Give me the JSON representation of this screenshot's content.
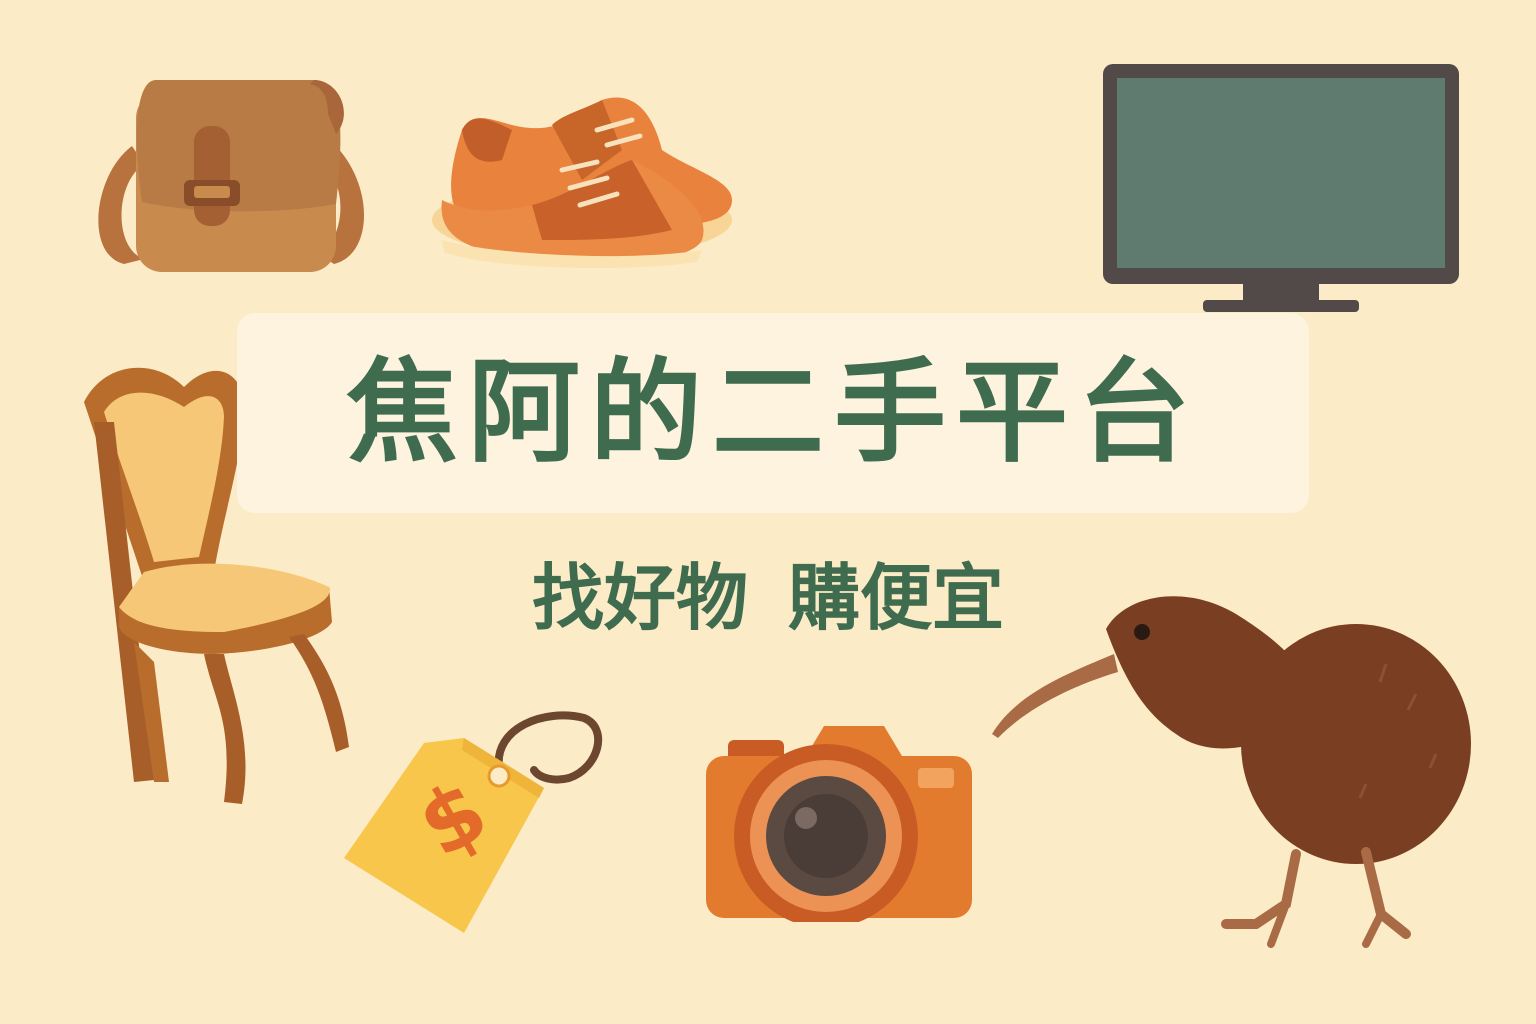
{
  "banner": {
    "title": "焦阿的二手平台",
    "tagline_left": "找好物",
    "tagline_right": "購便宜"
  },
  "illustrations": [
    "bag-icon",
    "sneakers-icon",
    "tv-icon",
    "chair-icon",
    "price-tag-icon",
    "camera-icon",
    "kiwi-bird-icon"
  ],
  "colors": {
    "background": "#fcebc7",
    "title_panel": "#fdf3df",
    "title_text": "#3f6b4f",
    "bag": "#c98a4e",
    "sneakers": "#e9823d",
    "tv_screen": "#5f7a6e",
    "kiwi": "#7a3f22",
    "camera": "#e37b2e",
    "tag": "#f7c64a"
  }
}
